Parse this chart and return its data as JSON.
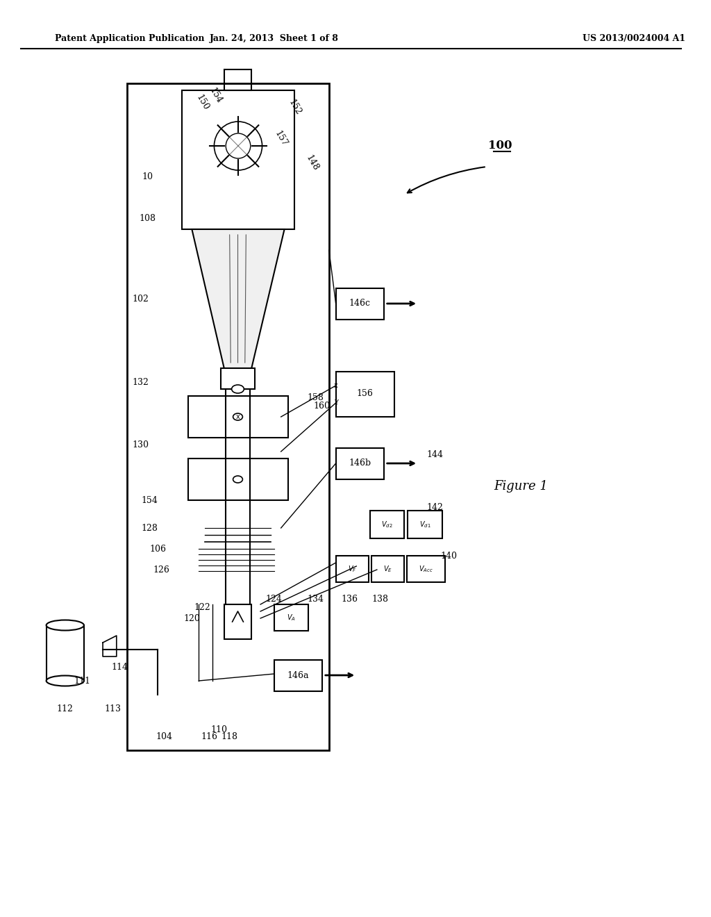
{
  "bg_color": "#ffffff",
  "header_left": "Patent Application Publication",
  "header_mid": "Jan. 24, 2013  Sheet 1 of 8",
  "header_right": "US 2013/0024004 A1",
  "figure_label": "Figure 1",
  "system_label": "100",
  "text_color": "#000000",
  "label_color": "#333333"
}
